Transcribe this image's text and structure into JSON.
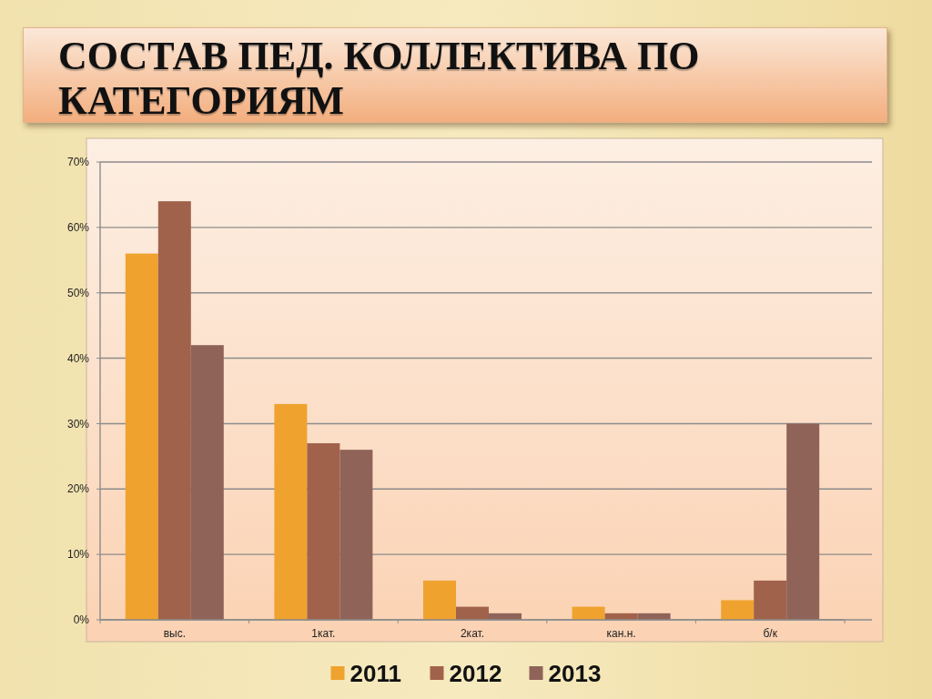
{
  "chart_data": {
    "type": "bar",
    "title": "СОСТАВ ПЕД. КОЛЛЕКТИВА ПО КАТЕГОРИЯМ",
    "categories": [
      "выс.",
      "1кат.",
      "2кат.",
      "кан.н.",
      "б/к"
    ],
    "series": [
      {
        "name": "2011",
        "color": "#efa22e",
        "values": [
          56,
          33,
          6,
          2,
          3
        ]
      },
      {
        "name": "2012",
        "color": "#a1624c",
        "values": [
          64,
          27,
          2,
          1,
          6
        ]
      },
      {
        "name": "2013",
        "color": "#8f6358",
        "values": [
          42,
          26,
          1,
          1,
          30
        ]
      }
    ],
    "ylim": [
      0,
      70
    ],
    "yticks": [
      {
        "value": 0,
        "label": "0%"
      },
      {
        "value": 10,
        "label": "10%"
      },
      {
        "value": 20,
        "label": "20%"
      },
      {
        "value": 30,
        "label": "30%"
      },
      {
        "value": 40,
        "label": "40%"
      },
      {
        "value": 50,
        "label": "50%"
      },
      {
        "value": 60,
        "label": "60%"
      },
      {
        "value": 70,
        "label": "70%"
      }
    ],
    "grid": "y",
    "legend": "bottom"
  }
}
